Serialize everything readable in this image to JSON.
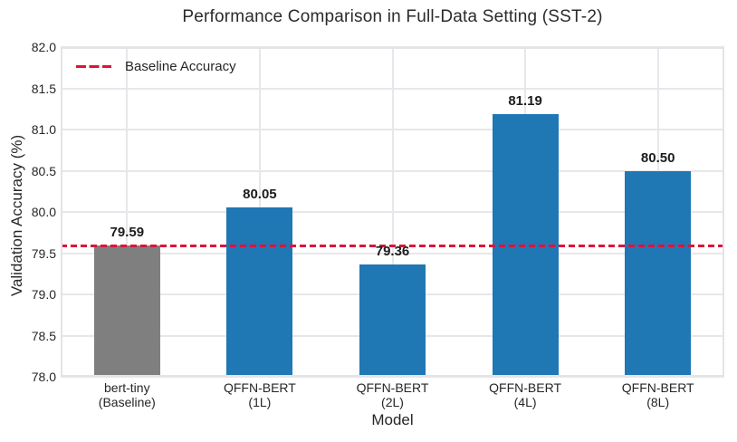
{
  "chart_data": {
    "type": "bar",
    "title": "Performance Comparison in Full-Data Setting (SST-2)",
    "xlabel": "Model",
    "ylabel": "Validation Accuracy (%)",
    "categories": [
      "bert-tiny\n(Baseline)",
      "QFFN-BERT\n(1L)",
      "QFFN-BERT\n(2L)",
      "QFFN-BERT\n(4L)",
      "QFFN-BERT\n(8L)"
    ],
    "values": [
      79.59,
      80.05,
      79.36,
      81.19,
      80.5
    ],
    "value_labels": [
      "79.59",
      "80.05",
      "79.36",
      "81.19",
      "80.50"
    ],
    "bar_colors": [
      "#7f7f7f",
      "#1f77b4",
      "#1f77b4",
      "#1f77b4",
      "#1f77b4"
    ],
    "ylim": [
      78.0,
      82.0
    ],
    "yticks": [
      82.0,
      81.5,
      81.0,
      80.5,
      80.0,
      79.5,
      79.0,
      78.5,
      78.0
    ],
    "ytick_labels": [
      "82.0",
      "81.5",
      "81.0",
      "80.5",
      "80.0",
      "79.5",
      "79.0",
      "78.5",
      "78.0"
    ],
    "grid": true,
    "legend": {
      "position": "upper-left",
      "entries": [
        {
          "label": "Baseline Accuracy",
          "style": "dashed",
          "color": "#dc143c"
        }
      ]
    },
    "baseline": {
      "value": 79.59,
      "color": "#dc143c"
    }
  },
  "colors": {
    "bar_blue": "#1f77b4",
    "bar_gray": "#7f7f7f",
    "baseline_red": "#dc143c",
    "gridline": "#e7e7eb",
    "text": "#262626"
  }
}
